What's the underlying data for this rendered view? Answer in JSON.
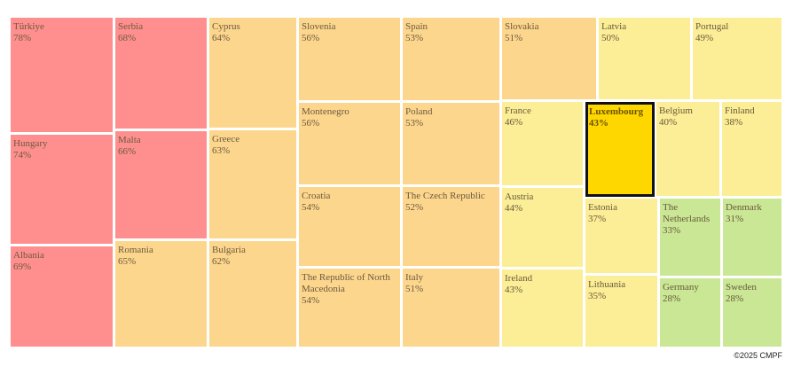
{
  "chart_data": {
    "type": "treemap",
    "colors": {
      "very_high": "#ff8f8f",
      "high": "#fdd68e",
      "medium": "#fbee96",
      "low": "#c9e794",
      "highlight": "#ffd700",
      "label_text": "#6b5a3e"
    },
    "items": [
      {
        "name": "Türkiye",
        "value": "78%"
      },
      {
        "name": "Hungary",
        "value": "74%"
      },
      {
        "name": "Albania",
        "value": "69%"
      },
      {
        "name": "Serbia",
        "value": "68%"
      },
      {
        "name": "Malta",
        "value": "66%"
      },
      {
        "name": "Romania",
        "value": "65%"
      },
      {
        "name": "Cyprus",
        "value": "64%"
      },
      {
        "name": "Greece",
        "value": "63%"
      },
      {
        "name": "Bulgaria",
        "value": "62%"
      },
      {
        "name": "Slovenia",
        "value": "56%"
      },
      {
        "name": "Montenegro",
        "value": "56%"
      },
      {
        "name": "Croatia",
        "value": "54%"
      },
      {
        "name": "The Republic of North Macedonia",
        "value": "54%"
      },
      {
        "name": "Spain",
        "value": "53%"
      },
      {
        "name": "Poland",
        "value": "53%"
      },
      {
        "name": "The Czech Republic",
        "value": "52%"
      },
      {
        "name": "Italy",
        "value": "51%"
      },
      {
        "name": "Slovakia",
        "value": "51%"
      },
      {
        "name": "France",
        "value": "46%"
      },
      {
        "name": "Austria",
        "value": "44%"
      },
      {
        "name": "Ireland",
        "value": "43%"
      },
      {
        "name": "Latvia",
        "value": "50%"
      },
      {
        "name": "Portugal",
        "value": "49%"
      },
      {
        "name": "Luxembourg",
        "value": "43%"
      },
      {
        "name": "Belgium",
        "value": "40%"
      },
      {
        "name": "Finland",
        "value": "38%"
      },
      {
        "name": "Estonia",
        "value": "37%"
      },
      {
        "name": "Lithuania",
        "value": "35%"
      },
      {
        "name": "The Netherlands",
        "value": "33%"
      },
      {
        "name": "Denmark",
        "value": "31%"
      },
      {
        "name": "Germany",
        "value": "28%"
      },
      {
        "name": "Sweden",
        "value": "28%"
      }
    ],
    "highlighted": "Luxembourg"
  },
  "footer": {
    "copyright": "©2025 CMPF"
  }
}
